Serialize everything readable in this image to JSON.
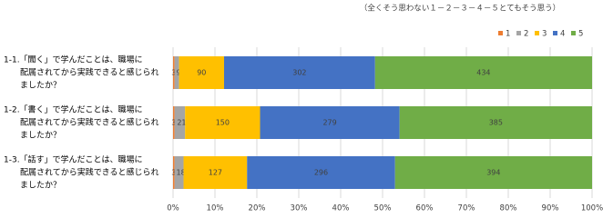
{
  "chart_data": {
    "type": "bar100h",
    "title": "（全くそう思わない１－２－３－４－５とてもそう思う）",
    "categories": [
      [
        "1-1.「聞く」で学んだことは、職場に",
        "配属されてから実践できると感じられ",
        "ましたか？"
      ],
      [
        "1-2.「書く」で学んだことは、職場に",
        "配属されてから実践できると感じられ",
        "ましたか？"
      ],
      [
        "1-3.「話す」で学んだことは、職場に",
        "配属されてから実践できると感じられ",
        "ましたか？"
      ]
    ],
    "series": [
      {
        "name": "1",
        "color": "#ED7D31",
        "values": [
          3,
          3,
          3
        ]
      },
      {
        "name": "2",
        "color": "#A5A5A5",
        "values": [
          9,
          21,
          18
        ]
      },
      {
        "name": "3",
        "color": "#FFC000",
        "values": [
          90,
          150,
          127
        ]
      },
      {
        "name": "4",
        "color": "#4472C4",
        "values": [
          302,
          279,
          296
        ]
      },
      {
        "name": "5",
        "color": "#70AD47",
        "values": [
          434,
          385,
          394
        ]
      }
    ],
    "xlim": [
      0,
      100
    ],
    "xticks": [
      {
        "value": 0,
        "label": "0%"
      },
      {
        "value": 10,
        "label": "10%"
      },
      {
        "value": 20,
        "label": "20%"
      },
      {
        "value": 30,
        "label": "30%"
      },
      {
        "value": 40,
        "label": "40%"
      },
      {
        "value": 50,
        "label": "50%"
      },
      {
        "value": 60,
        "label": "60%"
      },
      {
        "value": 70,
        "label": "70%"
      },
      {
        "value": 80,
        "label": "80%"
      },
      {
        "value": 90,
        "label": "90%"
      },
      {
        "value": 100,
        "label": "100%"
      }
    ],
    "grid": true,
    "legend": "top-right"
  }
}
